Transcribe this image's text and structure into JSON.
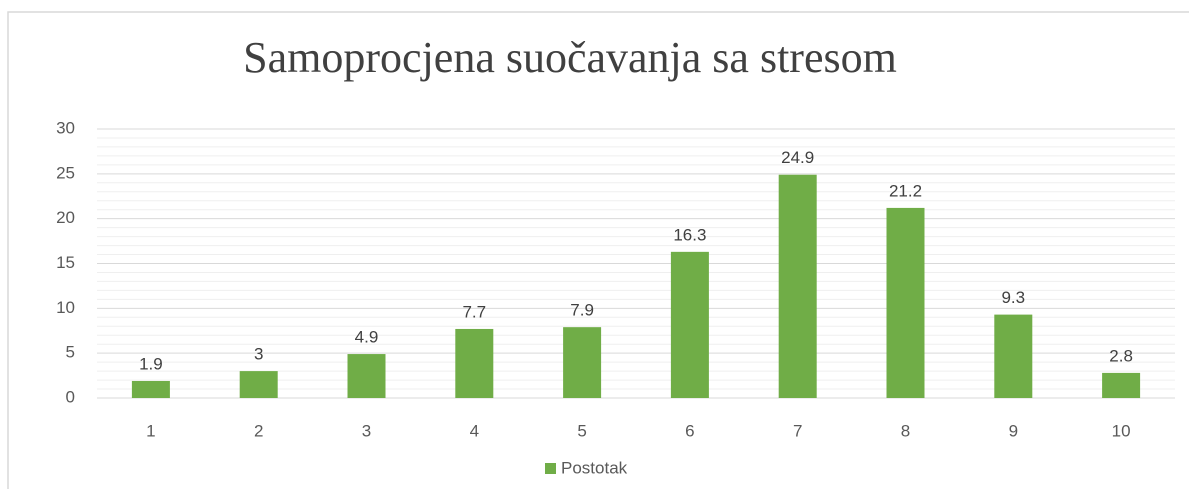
{
  "chart_data": {
    "type": "bar",
    "title": "Samoprocjena suočavanja sa stresom",
    "categories": [
      "1",
      "2",
      "3",
      "4",
      "5",
      "6",
      "7",
      "8",
      "9",
      "10"
    ],
    "series": [
      {
        "name": "Postotak",
        "color": "#70ad47",
        "values": [
          1.9,
          3,
          4.9,
          7.7,
          7.9,
          16.3,
          24.9,
          21.2,
          9.3,
          2.8
        ]
      }
    ],
    "ylim": [
      0,
      30
    ],
    "yticks": [
      0,
      5,
      10,
      15,
      20,
      25,
      30
    ],
    "grid": true,
    "minor_grid": true,
    "legend": "bottom"
  }
}
